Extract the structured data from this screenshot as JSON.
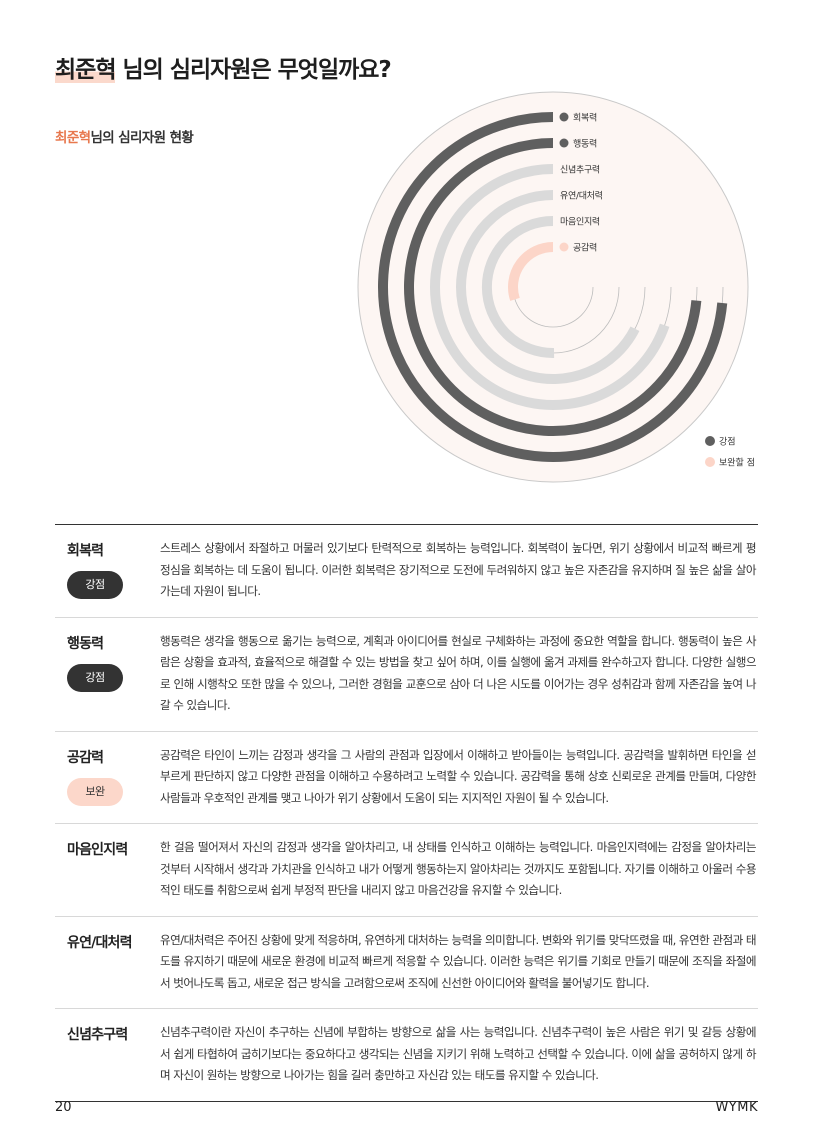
{
  "header": {
    "name": "최준혁",
    "title_rest": " 님의 심리자원은 무엇일까요?",
    "subtitle_rest": "님의 심리자원 현황"
  },
  "colors": {
    "strength": "#5f5f5f",
    "neutral": "#dadada",
    "weakness": "#fcd5c8",
    "accent": "#e8784e",
    "chart_bg": "#fdf6f3"
  },
  "chart_data": {
    "type": "radial-bar",
    "max_angle_degrees": 270,
    "series": [
      {
        "name": "회복력",
        "value": 0.98,
        "status": "strength"
      },
      {
        "name": "행동력",
        "value": 0.98,
        "status": "strength"
      },
      {
        "name": "신념추구력",
        "value": 0.93,
        "status": "neutral"
      },
      {
        "name": "유연/대처력",
        "value": 0.9,
        "status": "neutral"
      },
      {
        "name": "마음인지력",
        "value": 0.67,
        "status": "neutral"
      },
      {
        "name": "공감력",
        "value": 0.4,
        "status": "weakness"
      }
    ],
    "legend": [
      {
        "label": "강점",
        "status": "strength"
      },
      {
        "label": "보완할 점",
        "status": "weakness"
      }
    ],
    "legend_position": "bottom-right"
  },
  "rows": [
    {
      "title": "회복력",
      "badge": "강점",
      "badge_type": "strong",
      "text": "스트레스 상황에서 좌절하고 머물러 있기보다 탄력적으로 회복하는 능력입니다. 회복력이 높다면, 위기 상황에서 비교적 빠르게 평정심을 회복하는 데 도움이 됩니다. 이러한 회복력은 장기적으로 도전에 두려워하지 않고 높은 자존감을 유지하며 질 높은 삶을 살아가는데 자원이 됩니다."
    },
    {
      "title": "행동력",
      "badge": "강점",
      "badge_type": "strong",
      "text": "행동력은 생각을 행동으로 옮기는 능력으로, 계획과 아이디어를 현실로 구체화하는 과정에 중요한 역할을 합니다. 행동력이 높은 사람은 상황을 효과적, 효율적으로 해결할 수 있는 방법을 찾고 싶어 하며, 이를 실행에 옮겨 과제를 완수하고자 합니다. 다양한 실행으로 인해 시행착오 또한 많을 수 있으나, 그러한 경험을 교훈으로 삼아 더 나은 시도를 이어가는 경우 성취감과 함께 자존감을 높여 나갈 수 있습니다."
    },
    {
      "title": "공감력",
      "badge": "보완",
      "badge_type": "weak",
      "text": "공감력은 타인이 느끼는 감정과 생각을 그 사람의 관점과 입장에서 이해하고 받아들이는 능력입니다. 공감력을 발휘하면 타인을 섣부르게 판단하지 않고 다양한 관점을 이해하고 수용하려고 노력할 수 있습니다. 공감력을 통해 상호 신뢰로운 관계를 만들며, 다양한 사람들과 우호적인 관계를 맺고 나아가 위기 상황에서 도움이 되는 지지적인 자원이 될 수 있습니다."
    },
    {
      "title": "마음인지력",
      "badge": "",
      "badge_type": "",
      "text": "한 걸음 떨어져서 자신의 감정과 생각을 알아차리고, 내 상태를 인식하고 이해하는 능력입니다. 마음인지력에는 감정을 알아차리는 것부터 시작해서 생각과 가치관을 인식하고 내가 어떻게 행동하는지 알아차리는 것까지도 포함됩니다. 자기를 이해하고 아울러 수용적인 태도를 취함으로써 쉽게 부정적 판단을 내리지 않고 마음건강을 유지할 수 있습니다."
    },
    {
      "title": "유연/대처력",
      "badge": "",
      "badge_type": "",
      "text": "유연/대처력은 주어진 상황에 맞게 적응하며, 유연하게 대처하는 능력을 의미합니다. 변화와 위기를 맞닥뜨렸을 때, 유연한 관점과 태도를 유지하기 때문에 새로운 환경에 비교적 빠르게 적응할 수 있습니다. 이러한 능력은 위기를 기회로 만들기 때문에 조직을 좌절에서 벗어나도록 돕고, 새로운 접근 방식을 고려함으로써 조직에 신선한 아이디어와 활력을 불어넣기도 합니다."
    },
    {
      "title": "신념추구력",
      "badge": "",
      "badge_type": "",
      "text": "신념추구력이란 자신이 추구하는 신념에 부합하는 방향으로 삶을 사는 능력입니다. 신념추구력이 높은 사람은 위기 및 갈등 상황에서 쉽게 타협하여 굽히기보다는 중요하다고 생각되는 신념을 지키기 위해 노력하고 선택할 수 있습니다. 이에 삶을 공허하지 않게 하며 자신이 원하는 방향으로 나아가는 힘을 길러 충만하고 자신감 있는 태도를 유지할 수 있습니다."
    }
  ],
  "footer": {
    "page": "20",
    "brand": "WYMK"
  }
}
